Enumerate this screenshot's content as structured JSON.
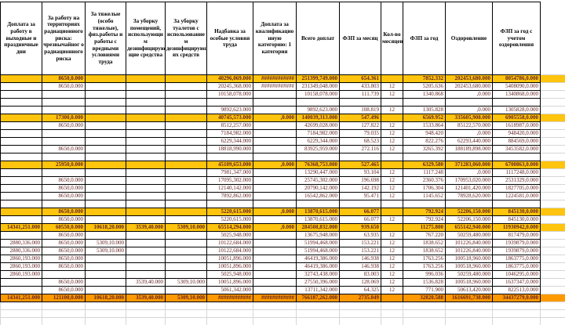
{
  "spreadsheet": {
    "columns": [
      {
        "label": "Доплата за работу в выходные и праздничные дни"
      },
      {
        "label": "За работу на территориях радиационного риска: чрезвычайног о радиационного риска"
      },
      {
        "label": "За тяжелые (особо тяжелые), физ.работы и работы с вредными условиями труда"
      },
      {
        "label": "За уборку помещений, использующи м дезинфицирую щие средства"
      },
      {
        "label": "За уборку туалетов с использование м дезинфицирующ их средств"
      },
      {
        "label": "Надбавка за особые условия труда"
      },
      {
        "label": "Доплата за квалификацио нную категорию: 1 категория"
      },
      {
        "label": "Всего доплат"
      },
      {
        "label": "ФЗП за месяц"
      },
      {
        "label": "Кол-во месяцев"
      },
      {
        "label": "ФЗП за год"
      },
      {
        "label": "Оздоровление"
      },
      {
        "label": "ФЗП за год с учетом оздоровления"
      }
    ],
    "overflow_marker": "############",
    "rows": [
      {
        "style": "subtotal",
        "cells": [
          "",
          "8650,0.000",
          "",
          "",
          "",
          "40296,069.000",
          "############",
          "251399,749.000",
          "654.361",
          "",
          "7852.332",
          "202453,680.000",
          "8054786,0.000"
        ]
      },
      {
        "style": "normal",
        "cells": [
          "",
          "8650,0.000",
          "",
          "",
          "",
          "20245,368.000",
          "############",
          "231349,048.000",
          "433.803",
          "12",
          "5205.636",
          "202453,680.000",
          "5408090,0.000"
        ]
      },
      {
        "style": "normal",
        "cells": [
          "",
          "",
          "",
          "",
          "",
          "10158,078.000",
          "",
          "10158,078.000",
          "111.739",
          "12",
          "1340.868",
          ",0.000",
          "1340868,0.000"
        ]
      },
      {
        "style": "normal",
        "cells": [
          "",
          "",
          "",
          "",
          "",
          "",
          "",
          "",
          "",
          "",
          "",
          "",
          ""
        ]
      },
      {
        "style": "normal",
        "cells": [
          "",
          "",
          "",
          "",
          "",
          "9892,623.000",
          "",
          "9892,623.000",
          "108.819",
          "12",
          "1305.828",
          ",0.000",
          "1305828,0.000"
        ]
      },
      {
        "style": "subtotal",
        "cells": [
          "",
          "17300,0.000",
          "",
          "",
          "",
          "40745,573.000",
          ",0.000",
          "140039,313.000",
          "547.496",
          "",
          "6569.952",
          "335605,908.000",
          "6905558,0.000"
        ]
      },
      {
        "style": "normal",
        "cells": [
          "",
          "8650,0.000",
          "",
          "",
          "",
          "8512,257.000",
          "",
          "42699,028.000",
          "127.822",
          "12",
          "1533.864",
          "85122,570.000",
          "1618987,0.000"
        ]
      },
      {
        "style": "normal",
        "cells": [
          "",
          "",
          "",
          "",
          "",
          "7184,982.000",
          "",
          "7184,982.000",
          "79.035",
          "12",
          "948.420",
          ",0.000",
          "948420,0.000"
        ]
      },
      {
        "style": "normal",
        "cells": [
          "",
          "",
          "",
          "",
          "",
          "6229,344.000",
          "",
          "6229,344.000",
          "68.523",
          "12",
          "822.276",
          "62293,440.000",
          "884569,0.000"
        ]
      },
      {
        "style": "normal",
        "cells": [
          "",
          "8650,0.000",
          "",
          "",
          "",
          "18818,990.000",
          "",
          "83925,959.000",
          "272.116",
          "12",
          "3265.392",
          "188189,898.000",
          "3453582,0.000"
        ]
      },
      {
        "style": "normal",
        "cells": [
          "",
          "",
          "",
          "",
          "",
          "",
          "",
          "",
          "",
          "",
          "",
          "",
          ""
        ]
      },
      {
        "style": "subtotal",
        "cells": [
          "",
          "25950,0.000",
          "",
          "",
          "",
          "45109,653.000",
          ",0.000",
          "76368,753.000",
          "527.465",
          "",
          "6329.580",
          "371283,060.000",
          "6700863,0.000"
        ]
      },
      {
        "style": "normal",
        "cells": [
          "",
          "",
          "",
          "",
          "",
          "7981,347.000",
          "",
          "13290,447.000",
          "93.104",
          "12",
          "1117.248",
          ",0.000",
          "1117248,0.000"
        ]
      },
      {
        "style": "normal",
        "cells": [
          "",
          "8650,0.000",
          "",
          "",
          "",
          "17095,302.000",
          "",
          "25745,302.000",
          "196.698",
          "12",
          "2360.376",
          "170953,020.000",
          "2531329,0.000"
        ]
      },
      {
        "style": "normal",
        "cells": [
          "",
          "8650,0.000",
          "",
          "",
          "",
          "12140,142.000",
          "",
          "20790,142.000",
          "142.192",
          "12",
          "1706.304",
          "121401,420.000",
          "1827705,0.000"
        ]
      },
      {
        "style": "normal",
        "cells": [
          "",
          "8650,0.000",
          "",
          "",
          "",
          "7892,862.000",
          "",
          "16542,862.000",
          "95.471",
          "12",
          "1145.652",
          "78928,620.000",
          "1224581,0.000"
        ]
      },
      {
        "style": "normal",
        "cells": [
          "",
          "",
          "",
          "",
          "",
          "",
          "",
          "",
          "",
          "",
          "",
          "",
          ""
        ]
      },
      {
        "style": "subtotal",
        "cells": [
          "",
          "8650,0.000",
          "",
          "",
          "",
          "5220,615.000",
          ",0.000",
          "13870,615.000",
          "66.077",
          "",
          "792.924",
          "52206,150.000",
          "845130,0.000"
        ]
      },
      {
        "style": "normal",
        "cells": [
          "",
          "8650,0.000",
          "",
          "",
          "",
          "5220,615.000",
          "",
          "13870,615.000",
          "66.077",
          "12",
          "792.924",
          "52206,150.000",
          "845130,0.000"
        ]
      },
      {
        "style": "subtotal",
        "cells": [
          "14341,251.000",
          "60550,0.000",
          "10618,20.000",
          "3539,40.000",
          "5309,10.000",
          "65514,294.000",
          ",0.000",
          "284508,832.000",
          "939.650",
          "",
          "11275.800",
          "655142,940.000",
          "11930942,0.000"
        ]
      },
      {
        "style": "normal",
        "cells": [
          "",
          "8650,0.000",
          "",
          "",
          "",
          "5025,948.000",
          "",
          "13675,948.000",
          "63.935",
          "12",
          "767.220",
          "50259,480.000",
          "817479,0.000"
        ]
      },
      {
        "style": "normal",
        "cells": [
          "2880,336.000",
          "8650,0.000",
          "5309,10.000",
          "",
          "",
          "10122,684.000",
          "",
          "51994,468.000",
          "153.221",
          "12",
          "1838.652",
          "101226,840.000",
          "1939879,0.000"
        ]
      },
      {
        "style": "normal",
        "cells": [
          "2880,336.000",
          "8650,0.000",
          "5309,10.000",
          "",
          "",
          "10122,684.000",
          "",
          "51994,468.000",
          "153.221",
          "12",
          "1838.652",
          "101226,840.000",
          "1939879,0.000"
        ]
      },
      {
        "style": "normal",
        "cells": [
          "2860,193.000",
          "8650,0.000",
          "",
          "",
          "",
          "10051,896.000",
          "",
          "46419,386.000",
          "146.938",
          "12",
          "1763.256",
          "100518,960.000",
          "1863775,0.000"
        ]
      },
      {
        "style": "normal",
        "cells": [
          "2860,193.000",
          "8650,0.000",
          "",
          "",
          "",
          "10051,896.000",
          "",
          "46419,386.000",
          "146.938",
          "12",
          "1763.256",
          "100518,960.000",
          "1863775,0.000"
        ]
      },
      {
        "style": "normal",
        "cells": [
          "2860,193.000",
          "",
          "",
          "",
          "",
          "5025,948.000",
          "",
          "32743,438.000",
          "83.003",
          "12",
          "996.036",
          "50259,480.000",
          "1046295,0.000"
        ]
      },
      {
        "style": "normal",
        "cells": [
          "",
          "8650,0.000",
          "",
          "3539,40.000",
          "5309,10.000",
          "10051,896.000",
          "",
          "27550,396.000",
          "128.069",
          "12",
          "1536.828",
          "100518,960.000",
          "1637347,0.000"
        ]
      },
      {
        "style": "normal",
        "cells": [
          "",
          "8650,0.000",
          "",
          "",
          "",
          "5061,342.000",
          "",
          "13711,342.000",
          "64.325",
          "12",
          "771.900",
          "50613,420.000",
          "822513,0.000"
        ]
      },
      {
        "style": "total",
        "cells": [
          "14341,251.000",
          "121100,0.000",
          "10618,20.000",
          "3539,40.000",
          "5309,10.000",
          "############",
          "############",
          "766187,262.000",
          "2735.049",
          "",
          "32820.588",
          "1616691,738.000",
          "34437279,0.000"
        ]
      }
    ],
    "trailing_empty_rows": 3
  },
  "colors": {
    "subtotal_bg": "#ffc40d",
    "total_bg": "#ff9900",
    "number_text": "#632423",
    "grid_light": "#d6d6d6"
  }
}
